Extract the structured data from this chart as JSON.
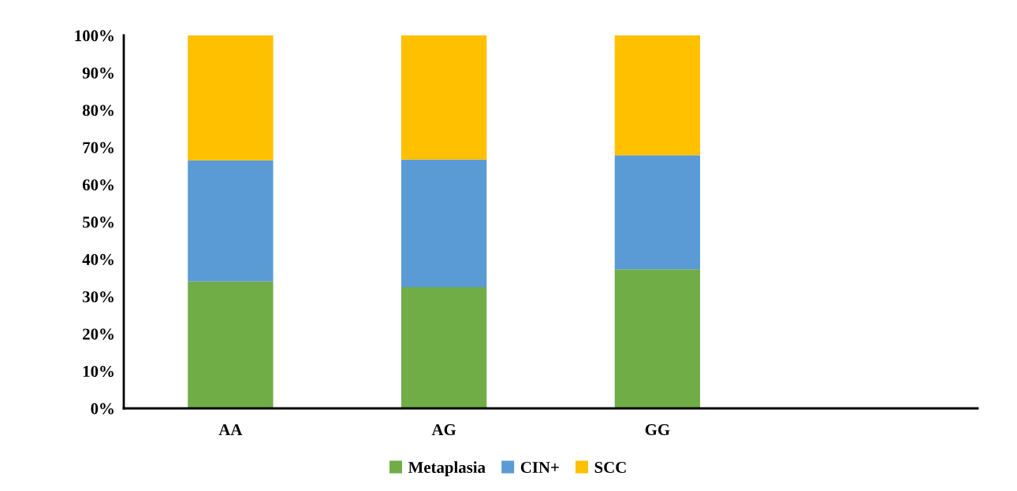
{
  "chart_data": {
    "type": "bar",
    "stacked": true,
    "categories": [
      "AA",
      "AG",
      "GG",
      null
    ],
    "series": [
      {
        "name": "Metaplasia",
        "color": "#70ad47",
        "values": [
          34.0,
          32.5,
          37.3,
          null
        ]
      },
      {
        "name": "CIN+",
        "color": "#5b9bd5",
        "values": [
          32.5,
          34.2,
          30.6,
          null
        ]
      },
      {
        "name": "SCC",
        "color": "#ffc000",
        "values": [
          33.5,
          33.3,
          32.1,
          null
        ]
      }
    ],
    "ylim": [
      0,
      100
    ],
    "yticks": [
      {
        "value": 0,
        "label": "0%"
      },
      {
        "value": 10,
        "label": "10%"
      },
      {
        "value": 20,
        "label": "20%"
      },
      {
        "value": 30,
        "label": "30%"
      },
      {
        "value": 40,
        "label": "40%"
      },
      {
        "value": 50,
        "label": "50%"
      },
      {
        "value": 60,
        "label": "60%"
      },
      {
        "value": 70,
        "label": "70%"
      },
      {
        "value": 80,
        "label": "80%"
      },
      {
        "value": 90,
        "label": "90%"
      },
      {
        "value": 100,
        "label": "100%"
      }
    ],
    "grid": false,
    "legend": "bottom"
  }
}
